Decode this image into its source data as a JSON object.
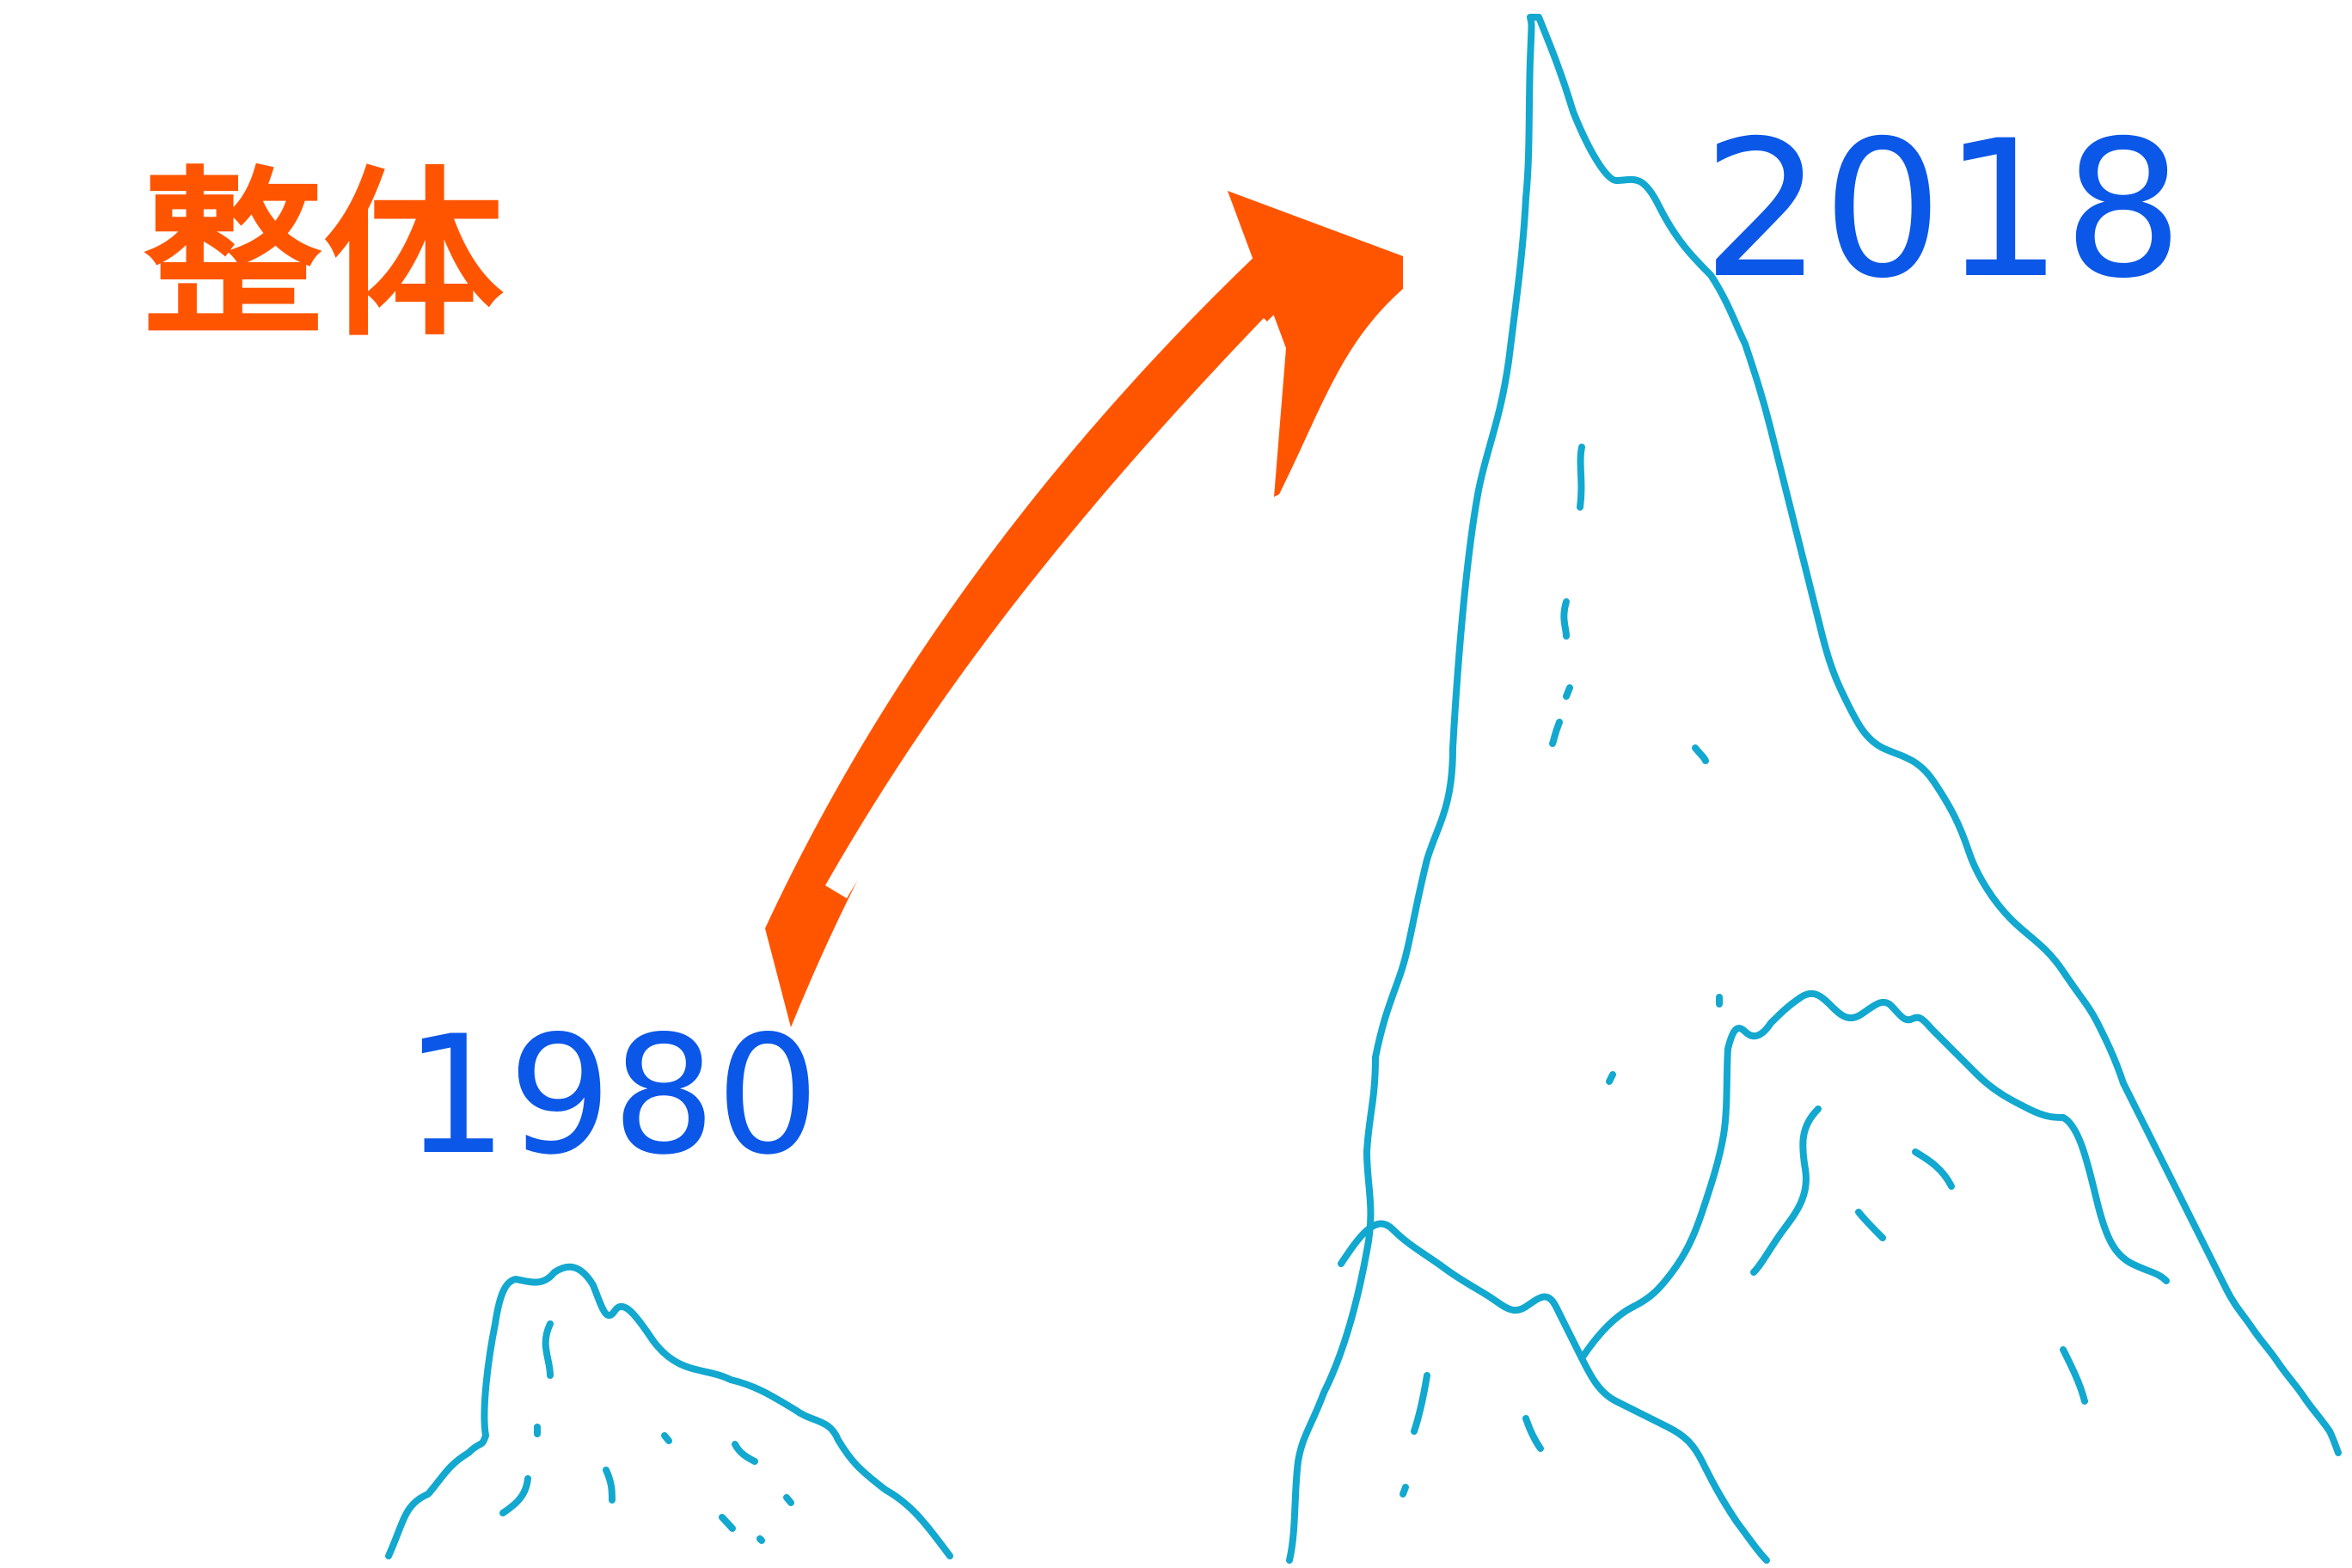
{
  "title": {
    "text": "整体"
  },
  "labels": {
    "start_year": "1980",
    "end_year": "2018"
  },
  "colors": {
    "title": "#FF5500",
    "year": "#0B57E8",
    "mountain": "#12A8CF",
    "arrow": "#FF5500",
    "background": "#FFFFFF"
  },
  "icons": {
    "small_mountain": "mountain-icon",
    "large_mountain": "mountain-icon",
    "growth_arrow": "arrow-up-right-icon"
  }
}
